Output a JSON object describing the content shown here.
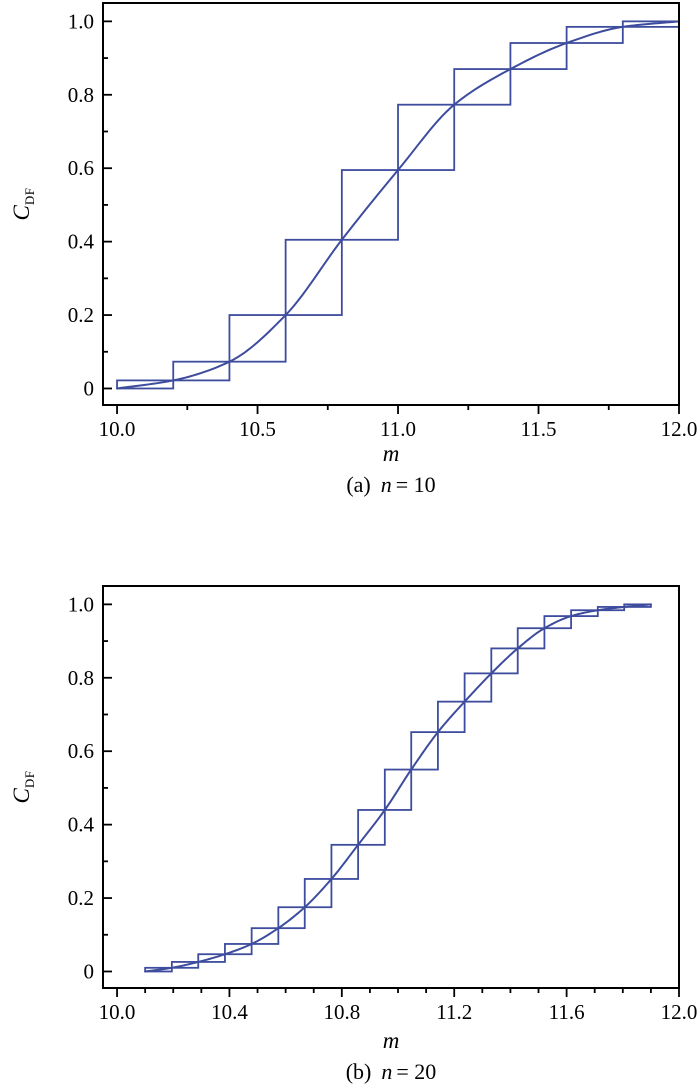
{
  "styles": {
    "line_color": "#3E4C9E",
    "axis_color": "#000000",
    "background": "#FFFFFF",
    "major_tick_len": 9,
    "minor_tick_len": 5
  },
  "chart_data": [
    {
      "type": "line",
      "panel": "a",
      "caption": {
        "index": "(a)",
        "var": "n",
        "eq": "= 10"
      },
      "xlabel": "m",
      "ylabel_base": "C",
      "ylabel_sub": "DF",
      "xlim": [
        9.95,
        12.0
      ],
      "ylim": [
        -0.045,
        1.05
      ],
      "grid": false,
      "legend": false,
      "x_major_ticks": {
        "values": [
          10.0,
          10.5,
          11.0,
          11.5,
          12.0
        ],
        "labels": [
          "10.0",
          "10.5",
          "11.0",
          "11.5",
          "12.0"
        ]
      },
      "x_minor_ticks": [
        10.25,
        10.75,
        11.25,
        11.75
      ],
      "y_major_ticks": {
        "values": [
          0,
          0.2,
          0.4,
          0.6,
          0.8,
          1.0
        ],
        "labels": [
          "0",
          "0.2",
          "0.4",
          "0.6",
          "0.8",
          "1.0"
        ]
      },
      "y_minor_ticks": [
        0.1,
        0.3,
        0.5,
        0.7,
        0.9
      ],
      "series": [
        {
          "name": "continuous CDF curve",
          "render": "smooth-line",
          "x": [
            10.0,
            10.2,
            10.4,
            10.6,
            10.8,
            11.0,
            11.2,
            11.4,
            11.6,
            11.8,
            12.0
          ],
          "y": [
            0.0,
            0.022,
            0.073,
            0.2,
            0.405,
            0.595,
            0.773,
            0.87,
            0.941,
            0.985,
            1.0
          ]
        },
        {
          "name": "discretized CDF staircase",
          "render": "step-boxes",
          "x": [
            10.0,
            10.2,
            10.4,
            10.6,
            10.8,
            11.0,
            11.2,
            11.4,
            11.6,
            11.8,
            12.0
          ],
          "y": [
            0.0,
            0.022,
            0.073,
            0.2,
            0.405,
            0.595,
            0.773,
            0.87,
            0.941,
            0.985,
            1.0
          ]
        }
      ]
    },
    {
      "type": "line",
      "panel": "b",
      "caption": {
        "index": "(b)",
        "var": "n",
        "eq": "= 20"
      },
      "xlabel": "m",
      "ylabel_base": "C",
      "ylabel_sub": "DF",
      "xlim": [
        9.95,
        12.0
      ],
      "ylim": [
        -0.045,
        1.05
      ],
      "grid": false,
      "legend": false,
      "x_major_ticks": {
        "values": [
          10.0,
          10.4,
          10.8,
          11.2,
          11.6,
          12.0
        ],
        "labels": [
          "10.0",
          "10.4",
          "10.8",
          "11.2",
          "11.6",
          "12.0"
        ]
      },
      "x_minor_ticks": [
        10.1,
        10.2,
        10.3,
        10.5,
        10.6,
        10.7,
        10.9,
        11.0,
        11.1,
        11.3,
        11.4,
        11.5,
        11.7,
        11.8,
        11.9
      ],
      "y_major_ticks": {
        "values": [
          0,
          0.2,
          0.4,
          0.6,
          0.8,
          1.0
        ],
        "labels": [
          "0",
          "0.2",
          "0.4",
          "0.6",
          "0.8",
          "1.0"
        ]
      },
      "y_minor_ticks": [
        0.1,
        0.3,
        0.5,
        0.7,
        0.9
      ],
      "series": [
        {
          "name": "continuous CDF curve",
          "render": "smooth-line",
          "x": [
            10.1,
            10.195,
            10.289,
            10.384,
            10.479,
            10.574,
            10.668,
            10.763,
            10.858,
            10.953,
            11.047,
            11.142,
            11.237,
            11.332,
            11.426,
            11.521,
            11.616,
            11.711,
            11.805,
            11.9
          ],
          "y": [
            0.0,
            0.01,
            0.026,
            0.047,
            0.075,
            0.118,
            0.175,
            0.252,
            0.345,
            0.44,
            0.55,
            0.652,
            0.735,
            0.812,
            0.88,
            0.935,
            0.968,
            0.984,
            0.993,
            1.0
          ]
        },
        {
          "name": "discretized CDF staircase",
          "render": "step-boxes",
          "x": [
            10.1,
            10.195,
            10.289,
            10.384,
            10.479,
            10.574,
            10.668,
            10.763,
            10.858,
            10.953,
            11.047,
            11.142,
            11.237,
            11.332,
            11.426,
            11.521,
            11.616,
            11.711,
            11.805,
            11.9
          ],
          "y": [
            0.0,
            0.01,
            0.026,
            0.047,
            0.075,
            0.118,
            0.175,
            0.252,
            0.345,
            0.44,
            0.55,
            0.652,
            0.735,
            0.812,
            0.88,
            0.935,
            0.968,
            0.984,
            0.993,
            1.0
          ]
        }
      ]
    }
  ]
}
